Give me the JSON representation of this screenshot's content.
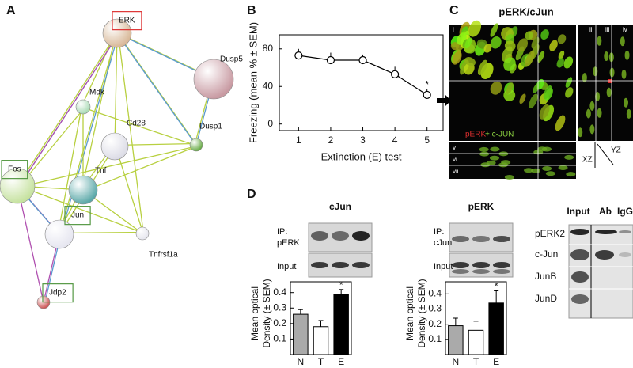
{
  "panel_labels": [
    "A",
    "B",
    "C",
    "D"
  ],
  "network": {
    "nodes": [
      {
        "label": "ERK",
        "color": "#d8b898",
        "box_color": "#dd3333"
      },
      {
        "label": "Dusp5",
        "color": "#c89aa2"
      },
      {
        "label": "Mdk",
        "color": "#a8dab4"
      },
      {
        "label": "Cd28",
        "color": "#dcdce6"
      },
      {
        "label": "Dusp1",
        "color": "#66aa44"
      },
      {
        "label": "Fos",
        "color": "#c6e2a0",
        "box_color": "#559944"
      },
      {
        "label": "Tnf",
        "color": "#5aa8a8"
      },
      {
        "label": "Jun",
        "color": "#e6e6f0",
        "box_color": "#559944"
      },
      {
        "label": "Tnfrsf1a",
        "color": "#e6e6ee"
      },
      {
        "label": "Jdp2",
        "color": "#cc5555",
        "box_color": "#559944"
      }
    ]
  },
  "microscopy": {
    "title": "pERK/cJun",
    "views": [
      "i",
      "ii",
      "iii",
      "iv",
      "v",
      "vi",
      "vii"
    ],
    "stain_1": "pERK",
    "stain_2": "+ c-JUN",
    "axes": [
      "YZ",
      "XZ"
    ]
  },
  "blots": [
    {
      "title": "cJun",
      "ip_label": "IP:",
      "ip_target": "pERK",
      "input_label": "Input"
    },
    {
      "title": "pERK",
      "ip_label": "IP:",
      "ip_target": "cJun",
      "input_label": "Input"
    }
  ],
  "blot_panel": {
    "columns": [
      "Input",
      "Ab",
      "IgG"
    ],
    "rows": [
      "pERK2",
      "c-Jun",
      "JunB",
      "JunD"
    ]
  },
  "chart_data": [
    {
      "type": "line",
      "x_label": "Extinction (E) test",
      "y_label": "Freezing  (mean % ± SEM)",
      "x": [
        1,
        2,
        3,
        4,
        5
      ],
      "series": [
        {
          "color": "#000000",
          "values": [
            73,
            68,
            68,
            53,
            31
          ],
          "errors": [
            7,
            8,
            6,
            8,
            6
          ]
        }
      ],
      "xlim": [
        0.4,
        5.5
      ],
      "ylim": [
        -7,
        95
      ],
      "xticks": [
        1,
        2,
        3,
        4,
        5
      ],
      "yticks": [
        0,
        40,
        80
      ],
      "annotations": [
        {
          "text": "*",
          "x": 5
        }
      ]
    },
    {
      "type": "bar",
      "y_label": [
        "Mean optical",
        "Density (± SEM)"
      ],
      "categories": [
        "N",
        "T",
        "E"
      ],
      "values": [
        0.26,
        0.18,
        0.39
      ],
      "errors": [
        0.03,
        0.04,
        0.03
      ],
      "colors": [
        "#aaaaaa",
        "#ffffff",
        "#000000"
      ],
      "ylim": [
        0,
        0.47
      ],
      "yticks": [
        0.1,
        0.2,
        0.3,
        0.4
      ],
      "annotations": [
        {
          "text": "*",
          "x": "E"
        }
      ]
    },
    {
      "type": "bar",
      "y_label": [
        "Mean optical",
        "Density (± SEM)"
      ],
      "categories": [
        "N",
        "T",
        "E"
      ],
      "values": [
        0.19,
        0.16,
        0.34
      ],
      "errors": [
        0.05,
        0.06,
        0.08
      ],
      "colors": [
        "#aaaaaa",
        "#ffffff",
        "#000000"
      ],
      "ylim": [
        0,
        0.48
      ],
      "yticks": [
        0.1,
        0.2,
        0.3,
        0.4
      ],
      "annotations": [
        {
          "text": "*",
          "x": "E"
        }
      ]
    }
  ]
}
